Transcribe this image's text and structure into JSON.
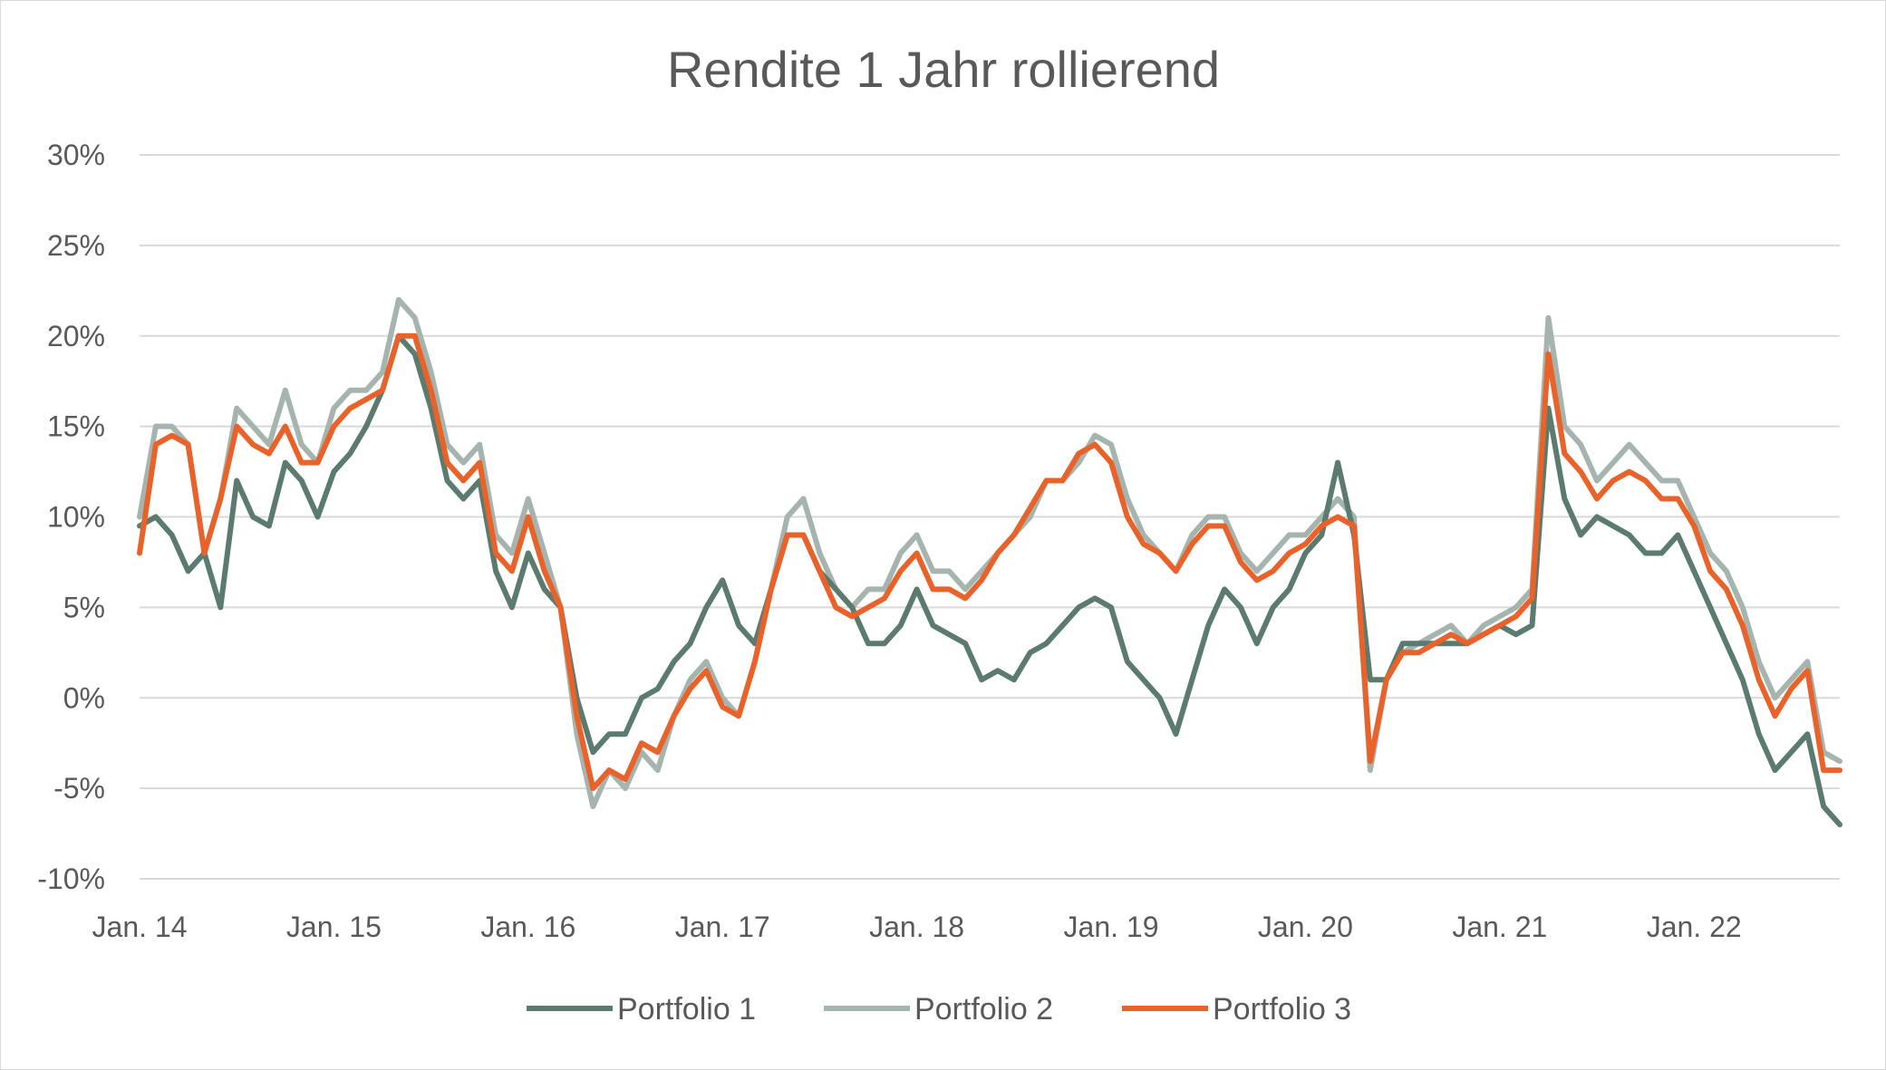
{
  "chart_data": {
    "type": "line",
    "title": "Rendite 1 Jahr rollierend",
    "xlabel": "",
    "ylabel": "",
    "x_tick_labels": [
      "Jan. 14",
      "Jan. 15",
      "Jan. 16",
      "Jan. 17",
      "Jan. 18",
      "Jan. 19",
      "Jan. 20",
      "Jan. 21",
      "Jan. 22"
    ],
    "y_tick_labels": [
      "-10%",
      "-5%",
      "0%",
      "5%",
      "10%",
      "15%",
      "20%",
      "25%",
      "30%"
    ],
    "y_ticks": [
      -10,
      -5,
      0,
      5,
      10,
      15,
      20,
      25,
      30
    ],
    "ylim": [
      -10,
      30
    ],
    "xlim": [
      "2014-01",
      "2022-10"
    ],
    "grid": true,
    "legend_position": "bottom",
    "x": [
      "2014-01",
      "2014-02",
      "2014-03",
      "2014-04",
      "2014-05",
      "2014-06",
      "2014-07",
      "2014-08",
      "2014-09",
      "2014-10",
      "2014-11",
      "2014-12",
      "2015-01",
      "2015-02",
      "2015-03",
      "2015-04",
      "2015-05",
      "2015-06",
      "2015-07",
      "2015-08",
      "2015-09",
      "2015-10",
      "2015-11",
      "2015-12",
      "2016-01",
      "2016-02",
      "2016-03",
      "2016-04",
      "2016-05",
      "2016-06",
      "2016-07",
      "2016-08",
      "2016-09",
      "2016-10",
      "2016-11",
      "2016-12",
      "2017-01",
      "2017-02",
      "2017-03",
      "2017-04",
      "2017-05",
      "2017-06",
      "2017-07",
      "2017-08",
      "2017-09",
      "2017-10",
      "2017-11",
      "2017-12",
      "2018-01",
      "2018-02",
      "2018-03",
      "2018-04",
      "2018-05",
      "2018-06",
      "2018-07",
      "2018-08",
      "2018-09",
      "2018-10",
      "2018-11",
      "2018-12",
      "2019-01",
      "2019-02",
      "2019-03",
      "2019-04",
      "2019-05",
      "2019-06",
      "2019-07",
      "2019-08",
      "2019-09",
      "2019-10",
      "2019-11",
      "2019-12",
      "2020-01",
      "2020-02",
      "2020-03",
      "2020-04",
      "2020-05",
      "2020-06",
      "2020-07",
      "2020-08",
      "2020-09",
      "2020-10",
      "2020-11",
      "2020-12",
      "2021-01",
      "2021-02",
      "2021-03",
      "2021-04",
      "2021-05",
      "2021-06",
      "2021-07",
      "2021-08",
      "2021-09",
      "2021-10",
      "2021-11",
      "2021-12",
      "2022-01",
      "2022-02",
      "2022-03",
      "2022-04",
      "2022-05",
      "2022-06",
      "2022-07",
      "2022-08",
      "2022-09",
      "2022-10"
    ],
    "series": [
      {
        "name": "Portfolio 1",
        "color": "#5b7b6e",
        "values": [
          9.5,
          10,
          9,
          7,
          8,
          5,
          12,
          10,
          9.5,
          13,
          12,
          10,
          12.5,
          13.5,
          15,
          17,
          20,
          19,
          16,
          12,
          11,
          12,
          7,
          5,
          8,
          6,
          5,
          0,
          -3,
          -2,
          -2,
          0,
          0.5,
          2,
          3,
          5,
          6.5,
          4,
          3,
          6,
          9,
          9,
          7,
          6,
          5,
          3,
          3,
          4,
          6,
          4,
          3.5,
          3,
          1,
          1.5,
          1,
          2.5,
          3,
          4,
          5,
          5.5,
          5,
          2,
          1,
          0,
          -2,
          1,
          4,
          6,
          5,
          3,
          5,
          6,
          8,
          9,
          13,
          9,
          1,
          1,
          3,
          3,
          3,
          3,
          3,
          3.5,
          4,
          3.5,
          4,
          16,
          11,
          9,
          10,
          9.5,
          9,
          8,
          8,
          9,
          7,
          5,
          3,
          1,
          -2,
          -4,
          -3,
          -2,
          -6,
          -7
        ]
      },
      {
        "name": "Portfolio 2",
        "color": "#a5b5ad",
        "values": [
          10,
          15,
          15,
          14,
          8,
          11,
          16,
          15,
          14,
          17,
          14,
          13,
          16,
          17,
          17,
          18,
          22,
          21,
          18,
          14,
          13,
          14,
          9,
          8,
          11,
          8,
          5,
          -2,
          -6,
          -4,
          -5,
          -3,
          -4,
          -1,
          1,
          2,
          0,
          -1,
          2,
          6,
          10,
          11,
          8,
          6,
          5,
          6,
          6,
          8,
          9,
          7,
          7,
          6,
          7,
          8,
          9,
          10,
          12,
          12,
          13,
          14.5,
          14,
          11,
          9,
          8,
          7,
          9,
          10,
          10,
          8,
          7,
          8,
          9,
          9,
          10,
          11,
          10,
          -4,
          1,
          2.5,
          3,
          3.5,
          4,
          3,
          4,
          4.5,
          5,
          6,
          21,
          15,
          14,
          12,
          13,
          14,
          13,
          12,
          12,
          10,
          8,
          7,
          5,
          2,
          0,
          1,
          2,
          -3,
          -3.5
        ]
      },
      {
        "name": "Portfolio 3",
        "color": "#e8622a",
        "values": [
          8,
          14,
          14.5,
          14,
          8,
          11,
          15,
          14,
          13.5,
          15,
          13,
          13,
          15,
          16,
          16.5,
          17,
          20,
          20,
          17,
          13,
          12,
          13,
          8,
          7,
          10,
          7,
          5,
          -1,
          -5,
          -4,
          -4.5,
          -2.5,
          -3,
          -1,
          0.5,
          1.5,
          -0.5,
          -1,
          2,
          6,
          9,
          9,
          7,
          5,
          4.5,
          5,
          5.5,
          7,
          8,
          6,
          6,
          5.5,
          6.5,
          8,
          9,
          10.5,
          12,
          12,
          13.5,
          14,
          13,
          10,
          8.5,
          8,
          7,
          8.5,
          9.5,
          9.5,
          7.5,
          6.5,
          7,
          8,
          8.5,
          9.5,
          10,
          9.5,
          -3.5,
          1,
          2.5,
          2.5,
          3,
          3.5,
          3,
          3.5,
          4,
          4.5,
          5.5,
          19,
          13.5,
          12.5,
          11,
          12,
          12.5,
          12,
          11,
          11,
          9.5,
          7,
          6,
          4,
          1,
          -1,
          0.5,
          1.5,
          -4,
          -4
        ]
      }
    ]
  }
}
